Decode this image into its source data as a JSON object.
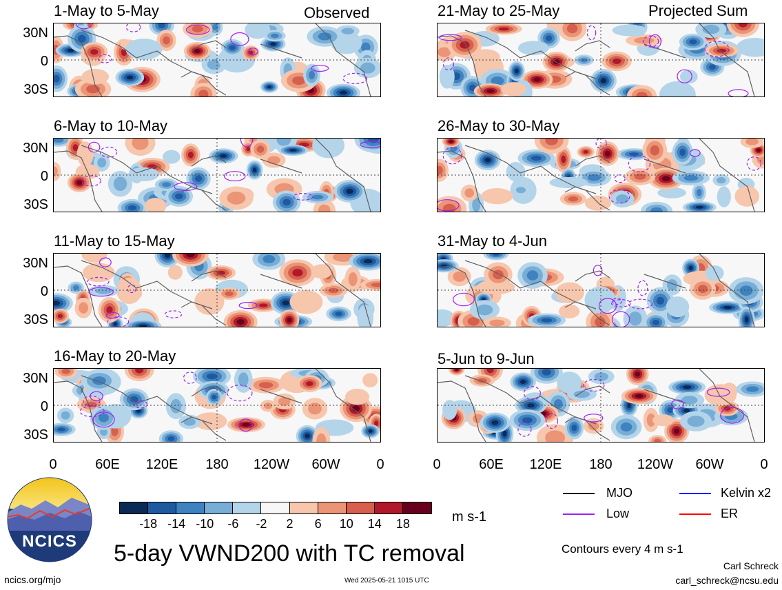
{
  "column_titles": {
    "left": "Observed",
    "right": "Projected Sum"
  },
  "panels": {
    "left": [
      {
        "title": "1-May to 5-May"
      },
      {
        "title": "6-May to 10-May"
      },
      {
        "title": "11-May to 15-May"
      },
      {
        "title": "16-May to 20-May"
      }
    ],
    "right": [
      {
        "title": "21-May to 25-May"
      },
      {
        "title": "26-May to 30-May"
      },
      {
        "title": "31-May to 4-Jun"
      },
      {
        "title": "5-Jun to 9-Jun"
      }
    ]
  },
  "lat_labels": [
    "30N",
    "0",
    "30S"
  ],
  "lon_labels": [
    "0",
    "60E",
    "120E",
    "180",
    "120W",
    "60W",
    "0"
  ],
  "colorbar": {
    "labels": [
      "-18",
      "-14",
      "-10",
      "-6",
      "-2",
      "2",
      "6",
      "10",
      "14",
      "18"
    ],
    "colors": [
      "#0b2a55",
      "#1f5aa0",
      "#3f82c0",
      "#78add6",
      "#b4d4ea",
      "#f7f7f7",
      "#f6c6ad",
      "#eb9476",
      "#d6604d",
      "#b2182b",
      "#67001f"
    ],
    "unit": "m s-1"
  },
  "legend": {
    "items": [
      {
        "label": "MJO",
        "color": "#000000"
      },
      {
        "label": "Kelvin x2",
        "color": "#0000ff"
      },
      {
        "label": "Low",
        "color": "#a020f0"
      },
      {
        "label": "ER",
        "color": "#ff0000"
      }
    ],
    "contours": "Contours every 4 m s-1"
  },
  "main_title": "5-day VWND200 with TC removal",
  "logo_text": "NCICS",
  "footer": {
    "url": "ncics.org/mjo",
    "timestamp": "Wed 2025-05-21 1015 UTC",
    "author": "Carl Schreck",
    "email": "carl_schreck@ncsu.edu"
  }
}
